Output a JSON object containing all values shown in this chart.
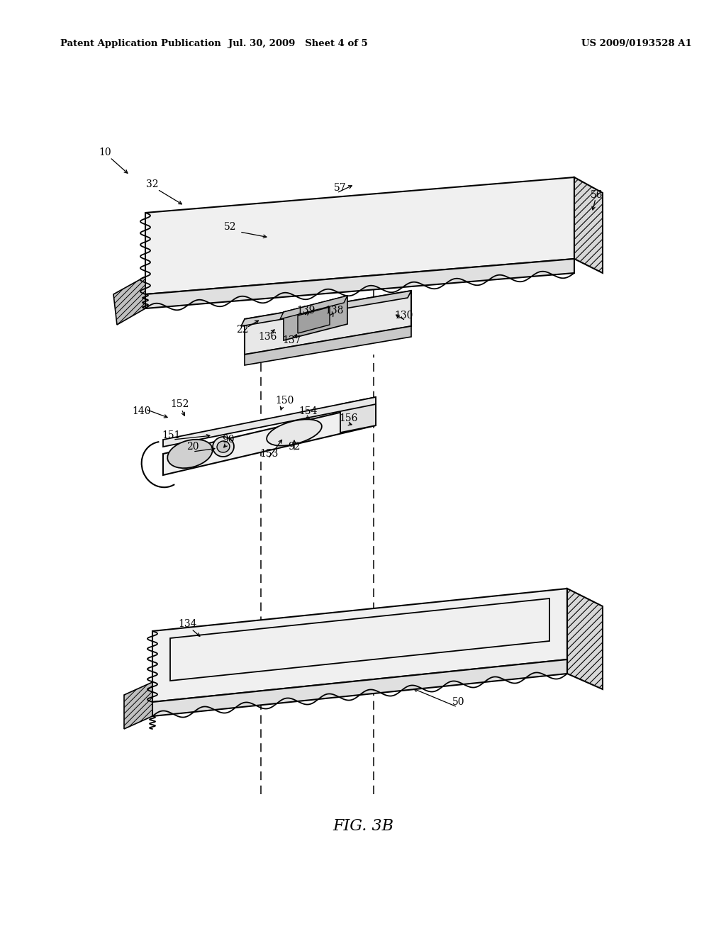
{
  "background_color": "#ffffff",
  "header_left": "Patent Application Publication",
  "header_center": "Jul. 30, 2009   Sheet 4 of 5",
  "header_right": "US 2009/0193528 A1",
  "figure_label": "FIG. 3B"
}
